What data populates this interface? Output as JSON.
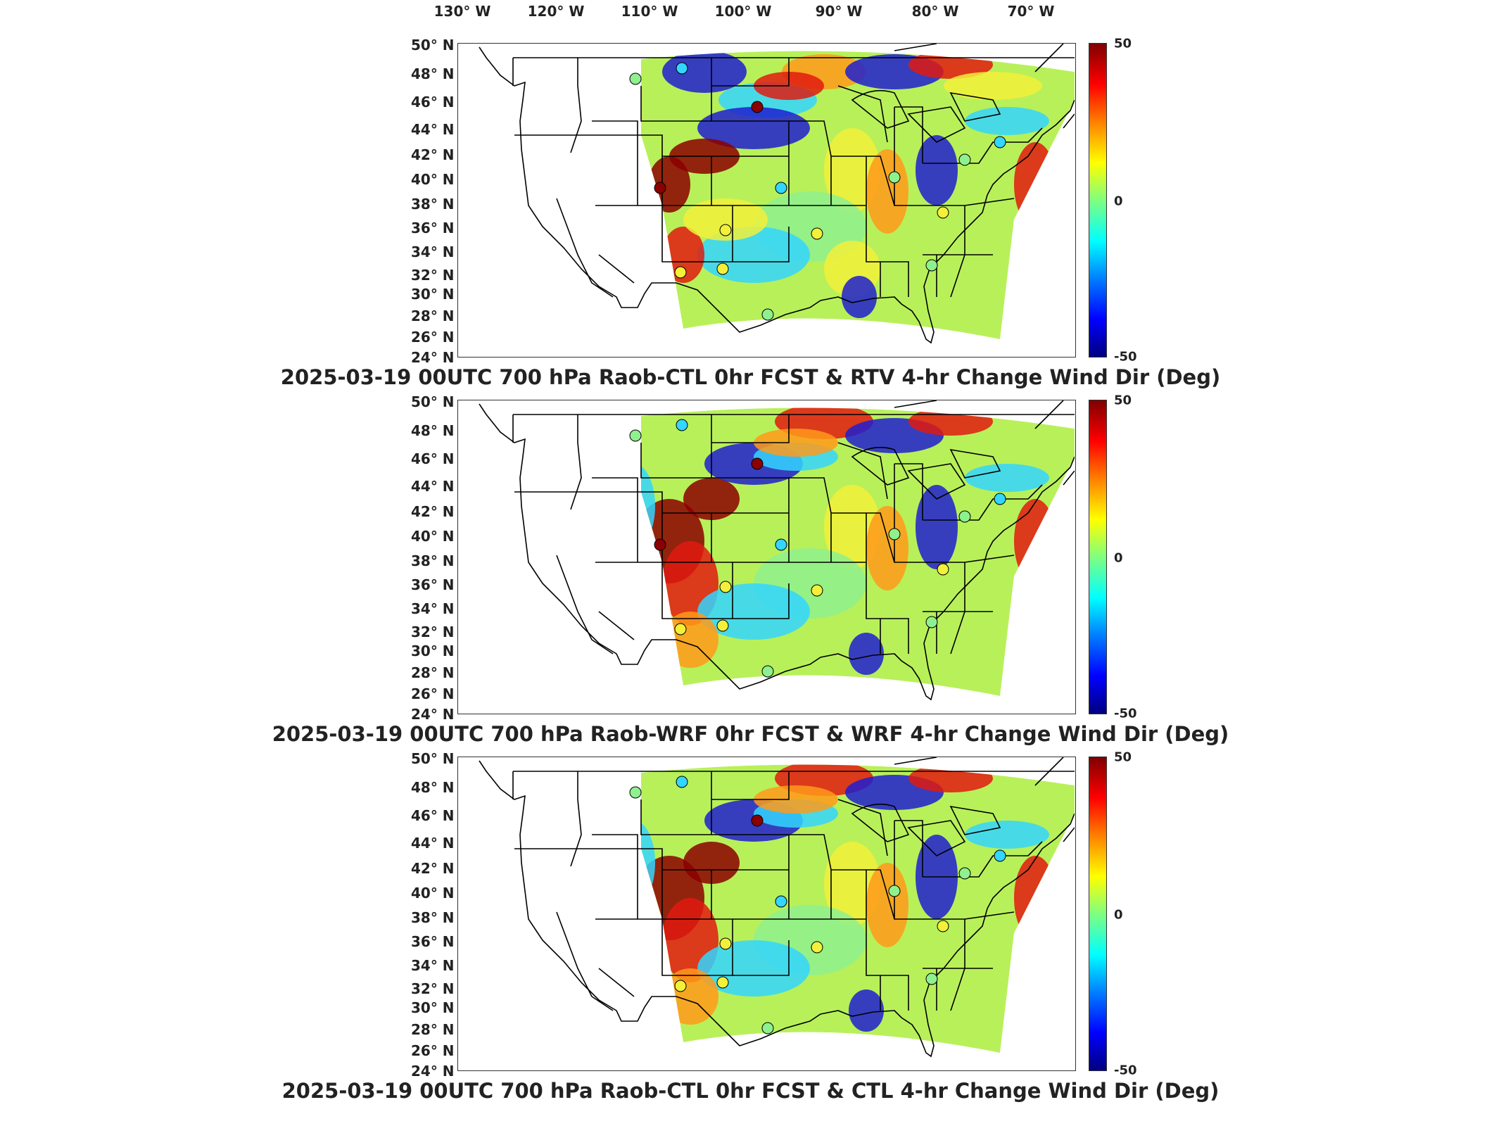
{
  "longitude_labels": [
    "130° W",
    "120° W",
    "110° W",
    "100° W",
    "90° W",
    "80° W",
    "70° W"
  ],
  "latitude_labels": [
    "50° N",
    "48° N",
    "46° N",
    "44° N",
    "42° N",
    "40° N",
    "38° N",
    "36° N",
    "34° N",
    "32° N",
    "30° N",
    "28° N",
    "26° N",
    "24° N"
  ],
  "colorbar": {
    "max": "50",
    "mid": "0",
    "min": "-50",
    "colormap": "jet"
  },
  "panels": [
    {
      "title": "2025-03-19 00UTC 700 hPa Raob-CTL 0hr FCST & RTV 4-hr Change Wind Dir (Deg)"
    },
    {
      "title": "2025-03-19 00UTC 700 hPa Raob-WRF 0hr FCST & WRF 4-hr Change Wind Dir (Deg)"
    },
    {
      "title": "2025-03-19 00UTC 700 hPa Raob-CTL 0hr FCST & CTL 4-hr Change Wind Dir (Deg)"
    }
  ],
  "colors": {
    "deep_blue": "#1f1fd0",
    "cyan": "#33d6ff",
    "green": "#8ef08e",
    "yellow": "#f2f03a",
    "orange": "#ff9a1a",
    "red": "#e01a10",
    "dark_red": "#8b0000"
  }
}
